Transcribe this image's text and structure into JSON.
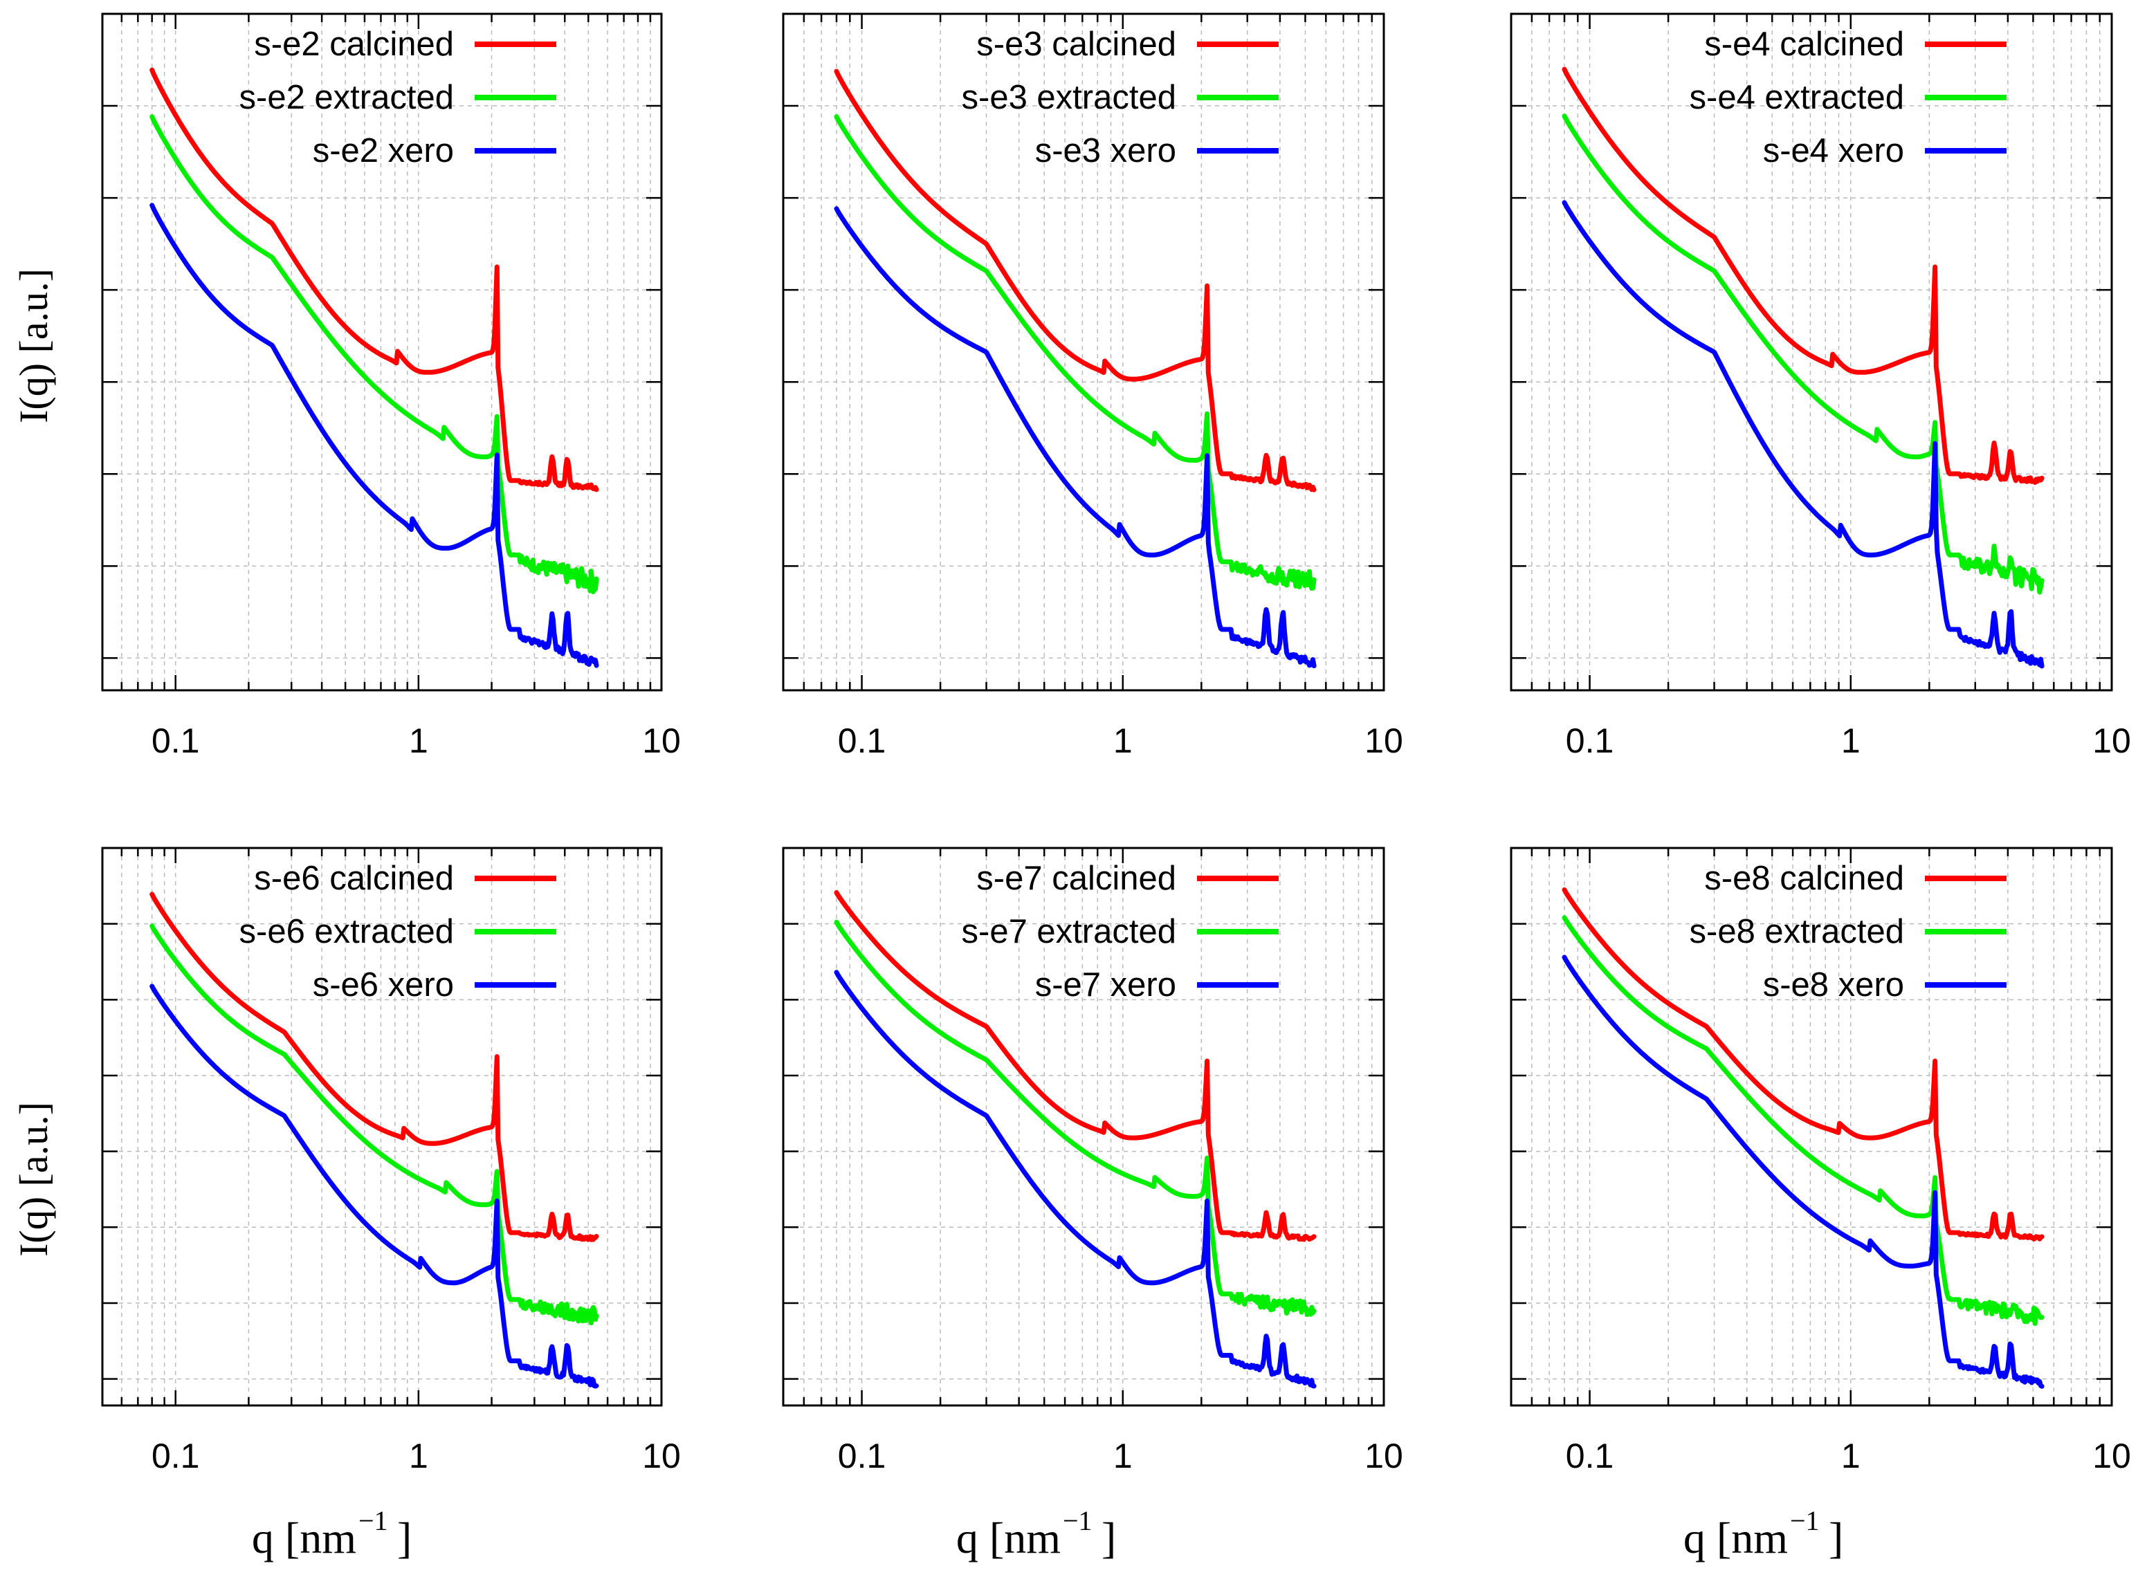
{
  "figure": {
    "ylabel": "I(q)  [a.u.]",
    "xlabel_base": "q  [nm",
    "xlabel_sup": "−1",
    "xlabel_close": "]"
  },
  "colors": {
    "calcined": "#ff0000",
    "extracted": "#00ee00",
    "xero": "#0000ff",
    "axis": "#000000",
    "grid": "#bbbbbb"
  },
  "chart_data": [
    {
      "type": "line",
      "sample": "s-e2",
      "xscale": "log",
      "xlim": [
        0.05,
        10
      ],
      "ylim": [
        0,
        1
      ],
      "xticks": [
        {
          "value": 0.1,
          "label": "0.1"
        },
        {
          "value": 1,
          "label": "1"
        },
        {
          "value": 10,
          "label": "10"
        }
      ],
      "ylabel": "I(q)  [a.u.]",
      "xlabel": "q  [nm⁻¹]",
      "legend_position": "top-right",
      "series": [
        {
          "name": "s-e2 calcined",
          "color": "#ff0000",
          "start": 0.917,
          "kink_q": 0.25,
          "kink_y": 0.69,
          "min_q": 1.1,
          "min_y": 0.47,
          "plateau": 0.31,
          "tail_end": 0.3,
          "noise": 0.005,
          "peak_h": 0.14,
          "p2": 0.04,
          "p3": 0.04
        },
        {
          "name": "s-e2 extracted",
          "color": "#00ee00",
          "start": 0.848,
          "kink_q": 0.25,
          "kink_y": 0.64,
          "min_q": 1.9,
          "min_y": 0.345,
          "plateau": 0.2,
          "tail_end": 0.16,
          "noise": 0.022,
          "peak_h": 0.06,
          "p2": 0.0,
          "p3": 0.0
        },
        {
          "name": "s-e2 xero",
          "color": "#0000ff",
          "start": 0.717,
          "kink_q": 0.25,
          "kink_y": 0.51,
          "min_q": 1.3,
          "min_y": 0.21,
          "plateau": 0.09,
          "tail_end": 0.04,
          "noise": 0.008,
          "peak_h": 0.12,
          "p2": 0.05,
          "p3": 0.06
        }
      ]
    },
    {
      "type": "line",
      "sample": "s-e3",
      "xscale": "log",
      "xlim": [
        0.05,
        10
      ],
      "ylim": [
        0,
        1
      ],
      "xticks": [
        {
          "value": 0.1,
          "label": "0.1"
        },
        {
          "value": 1,
          "label": "1"
        },
        {
          "value": 10,
          "label": "10"
        }
      ],
      "ylabel": "",
      "xlabel": "q  [nm⁻¹]",
      "legend_position": "top-right",
      "series": [
        {
          "name": "s-e3 calcined",
          "color": "#ff0000",
          "start": 0.915,
          "kink_q": 0.3,
          "kink_y": 0.66,
          "min_q": 1.1,
          "min_y": 0.46,
          "plateau": 0.32,
          "tail_end": 0.3,
          "noise": 0.005,
          "peak_h": 0.12,
          "p2": 0.04,
          "p3": 0.04
        },
        {
          "name": "s-e3 extracted",
          "color": "#00ee00",
          "start": 0.848,
          "kink_q": 0.3,
          "kink_y": 0.62,
          "min_q": 1.9,
          "min_y": 0.34,
          "plateau": 0.19,
          "tail_end": 0.16,
          "noise": 0.022,
          "peak_h": 0.07,
          "p2": 0.0,
          "p3": 0.0
        },
        {
          "name": "s-e3 xero",
          "color": "#0000ff",
          "start": 0.712,
          "kink_q": 0.3,
          "kink_y": 0.5,
          "min_q": 1.3,
          "min_y": 0.2,
          "plateau": 0.09,
          "tail_end": 0.04,
          "noise": 0.008,
          "peak_h": 0.13,
          "p2": 0.06,
          "p3": 0.06
        }
      ]
    },
    {
      "type": "line",
      "sample": "s-e4",
      "xscale": "log",
      "xlim": [
        0.05,
        10
      ],
      "ylim": [
        0,
        1
      ],
      "xticks": [
        {
          "value": 0.1,
          "label": "0.1"
        },
        {
          "value": 1,
          "label": "1"
        },
        {
          "value": 10,
          "label": "10"
        }
      ],
      "ylabel": "",
      "xlabel": "q  [nm⁻¹]",
      "legend_position": "top-right",
      "series": [
        {
          "name": "s-e4 calcined",
          "color": "#ff0000",
          "start": 0.918,
          "kink_q": 0.3,
          "kink_y": 0.67,
          "min_q": 1.1,
          "min_y": 0.47,
          "plateau": 0.32,
          "tail_end": 0.31,
          "noise": 0.005,
          "peak_h": 0.14,
          "p2": 0.05,
          "p3": 0.04
        },
        {
          "name": "s-e4 extracted",
          "color": "#00ee00",
          "start": 0.849,
          "kink_q": 0.3,
          "kink_y": 0.62,
          "min_q": 1.8,
          "min_y": 0.345,
          "plateau": 0.2,
          "tail_end": 0.16,
          "noise": 0.022,
          "peak_h": 0.05,
          "p2": 0.03,
          "p3": 0.03
        },
        {
          "name": "s-e4 xero",
          "color": "#0000ff",
          "start": 0.721,
          "kink_q": 0.3,
          "kink_y": 0.5,
          "min_q": 1.2,
          "min_y": 0.2,
          "plateau": 0.09,
          "tail_end": 0.04,
          "noise": 0.008,
          "peak_h": 0.15,
          "p2": 0.05,
          "p3": 0.06
        }
      ]
    },
    {
      "type": "line",
      "sample": "s-e6",
      "xscale": "log",
      "xlim": [
        0.05,
        10
      ],
      "ylim": [
        0,
        1
      ],
      "xticks": [
        {
          "value": 0.1,
          "label": "0.1"
        },
        {
          "value": 1,
          "label": "1"
        },
        {
          "value": 10,
          "label": "10"
        }
      ],
      "ylabel": "I(q)  [a.u.]",
      "xlabel": "q  [nm⁻¹]",
      "legend_position": "top-right",
      "series": [
        {
          "name": "s-e6 calcined",
          "color": "#ff0000",
          "start": 0.917,
          "kink_q": 0.28,
          "kink_y": 0.67,
          "min_q": 1.15,
          "min_y": 0.47,
          "plateau": 0.31,
          "tail_end": 0.3,
          "noise": 0.005,
          "peak_h": 0.14,
          "p2": 0.04,
          "p3": 0.04
        },
        {
          "name": "s-e6 extracted",
          "color": "#00ee00",
          "start": 0.86,
          "kink_q": 0.28,
          "kink_y": 0.63,
          "min_q": 1.9,
          "min_y": 0.36,
          "plateau": 0.19,
          "tail_end": 0.16,
          "noise": 0.022,
          "peak_h": 0.06,
          "p2": 0.0,
          "p3": 0.0
        },
        {
          "name": "s-e6 xero",
          "color": "#0000ff",
          "start": 0.752,
          "kink_q": 0.28,
          "kink_y": 0.52,
          "min_q": 1.4,
          "min_y": 0.22,
          "plateau": 0.08,
          "tail_end": 0.04,
          "noise": 0.008,
          "peak_h": 0.13,
          "p2": 0.05,
          "p3": 0.06
        }
      ]
    },
    {
      "type": "line",
      "sample": "s-e7",
      "xscale": "log",
      "xlim": [
        0.05,
        10
      ],
      "ylim": [
        0,
        1
      ],
      "xticks": [
        {
          "value": 0.1,
          "label": "0.1"
        },
        {
          "value": 1,
          "label": "1"
        },
        {
          "value": 10,
          "label": "10"
        }
      ],
      "ylabel": "",
      "xlabel": "q  [nm⁻¹]",
      "legend_position": "top-right",
      "series": [
        {
          "name": "s-e7 calcined",
          "color": "#ff0000",
          "start": 0.92,
          "kink_q": 0.3,
          "kink_y": 0.68,
          "min_q": 1.1,
          "min_y": 0.48,
          "plateau": 0.31,
          "tail_end": 0.3,
          "noise": 0.005,
          "peak_h": 0.12,
          "p2": 0.04,
          "p3": 0.04
        },
        {
          "name": "s-e7 extracted",
          "color": "#00ee00",
          "start": 0.867,
          "kink_q": 0.3,
          "kink_y": 0.62,
          "min_q": 1.9,
          "min_y": 0.375,
          "plateau": 0.2,
          "tail_end": 0.17,
          "noise": 0.022,
          "peak_h": 0.07,
          "p2": 0.0,
          "p3": 0.0
        },
        {
          "name": "s-e7 xero",
          "color": "#0000ff",
          "start": 0.777,
          "kink_q": 0.3,
          "kink_y": 0.52,
          "min_q": 1.3,
          "min_y": 0.22,
          "plateau": 0.09,
          "tail_end": 0.04,
          "noise": 0.008,
          "peak_h": 0.13,
          "p2": 0.06,
          "p3": 0.06
        }
      ]
    },
    {
      "type": "line",
      "sample": "s-e8",
      "xscale": "log",
      "xlim": [
        0.05,
        10
      ],
      "ylim": [
        0,
        1
      ],
      "xticks": [
        {
          "value": 0.1,
          "label": "0.1"
        },
        {
          "value": 1,
          "label": "1"
        },
        {
          "value": 10,
          "label": "10"
        }
      ],
      "ylabel": "",
      "xlabel": "q  [nm⁻¹]",
      "legend_position": "top-right",
      "series": [
        {
          "name": "s-e8 calcined",
          "color": "#ff0000",
          "start": 0.925,
          "kink_q": 0.28,
          "kink_y": 0.68,
          "min_q": 1.2,
          "min_y": 0.48,
          "plateau": 0.31,
          "tail_end": 0.3,
          "noise": 0.005,
          "peak_h": 0.12,
          "p2": 0.04,
          "p3": 0.04
        },
        {
          "name": "s-e8 extracted",
          "color": "#00ee00",
          "start": 0.875,
          "kink_q": 0.28,
          "kink_y": 0.64,
          "min_q": 1.9,
          "min_y": 0.34,
          "plateau": 0.19,
          "tail_end": 0.16,
          "noise": 0.022,
          "peak_h": 0.07,
          "p2": 0.0,
          "p3": 0.0
        },
        {
          "name": "s-e8 xero",
          "color": "#0000ff",
          "start": 0.804,
          "kink_q": 0.28,
          "kink_y": 0.55,
          "min_q": 1.7,
          "min_y": 0.25,
          "plateau": 0.08,
          "tail_end": 0.04,
          "noise": 0.008,
          "peak_h": 0.14,
          "p2": 0.05,
          "p3": 0.06
        }
      ]
    }
  ]
}
